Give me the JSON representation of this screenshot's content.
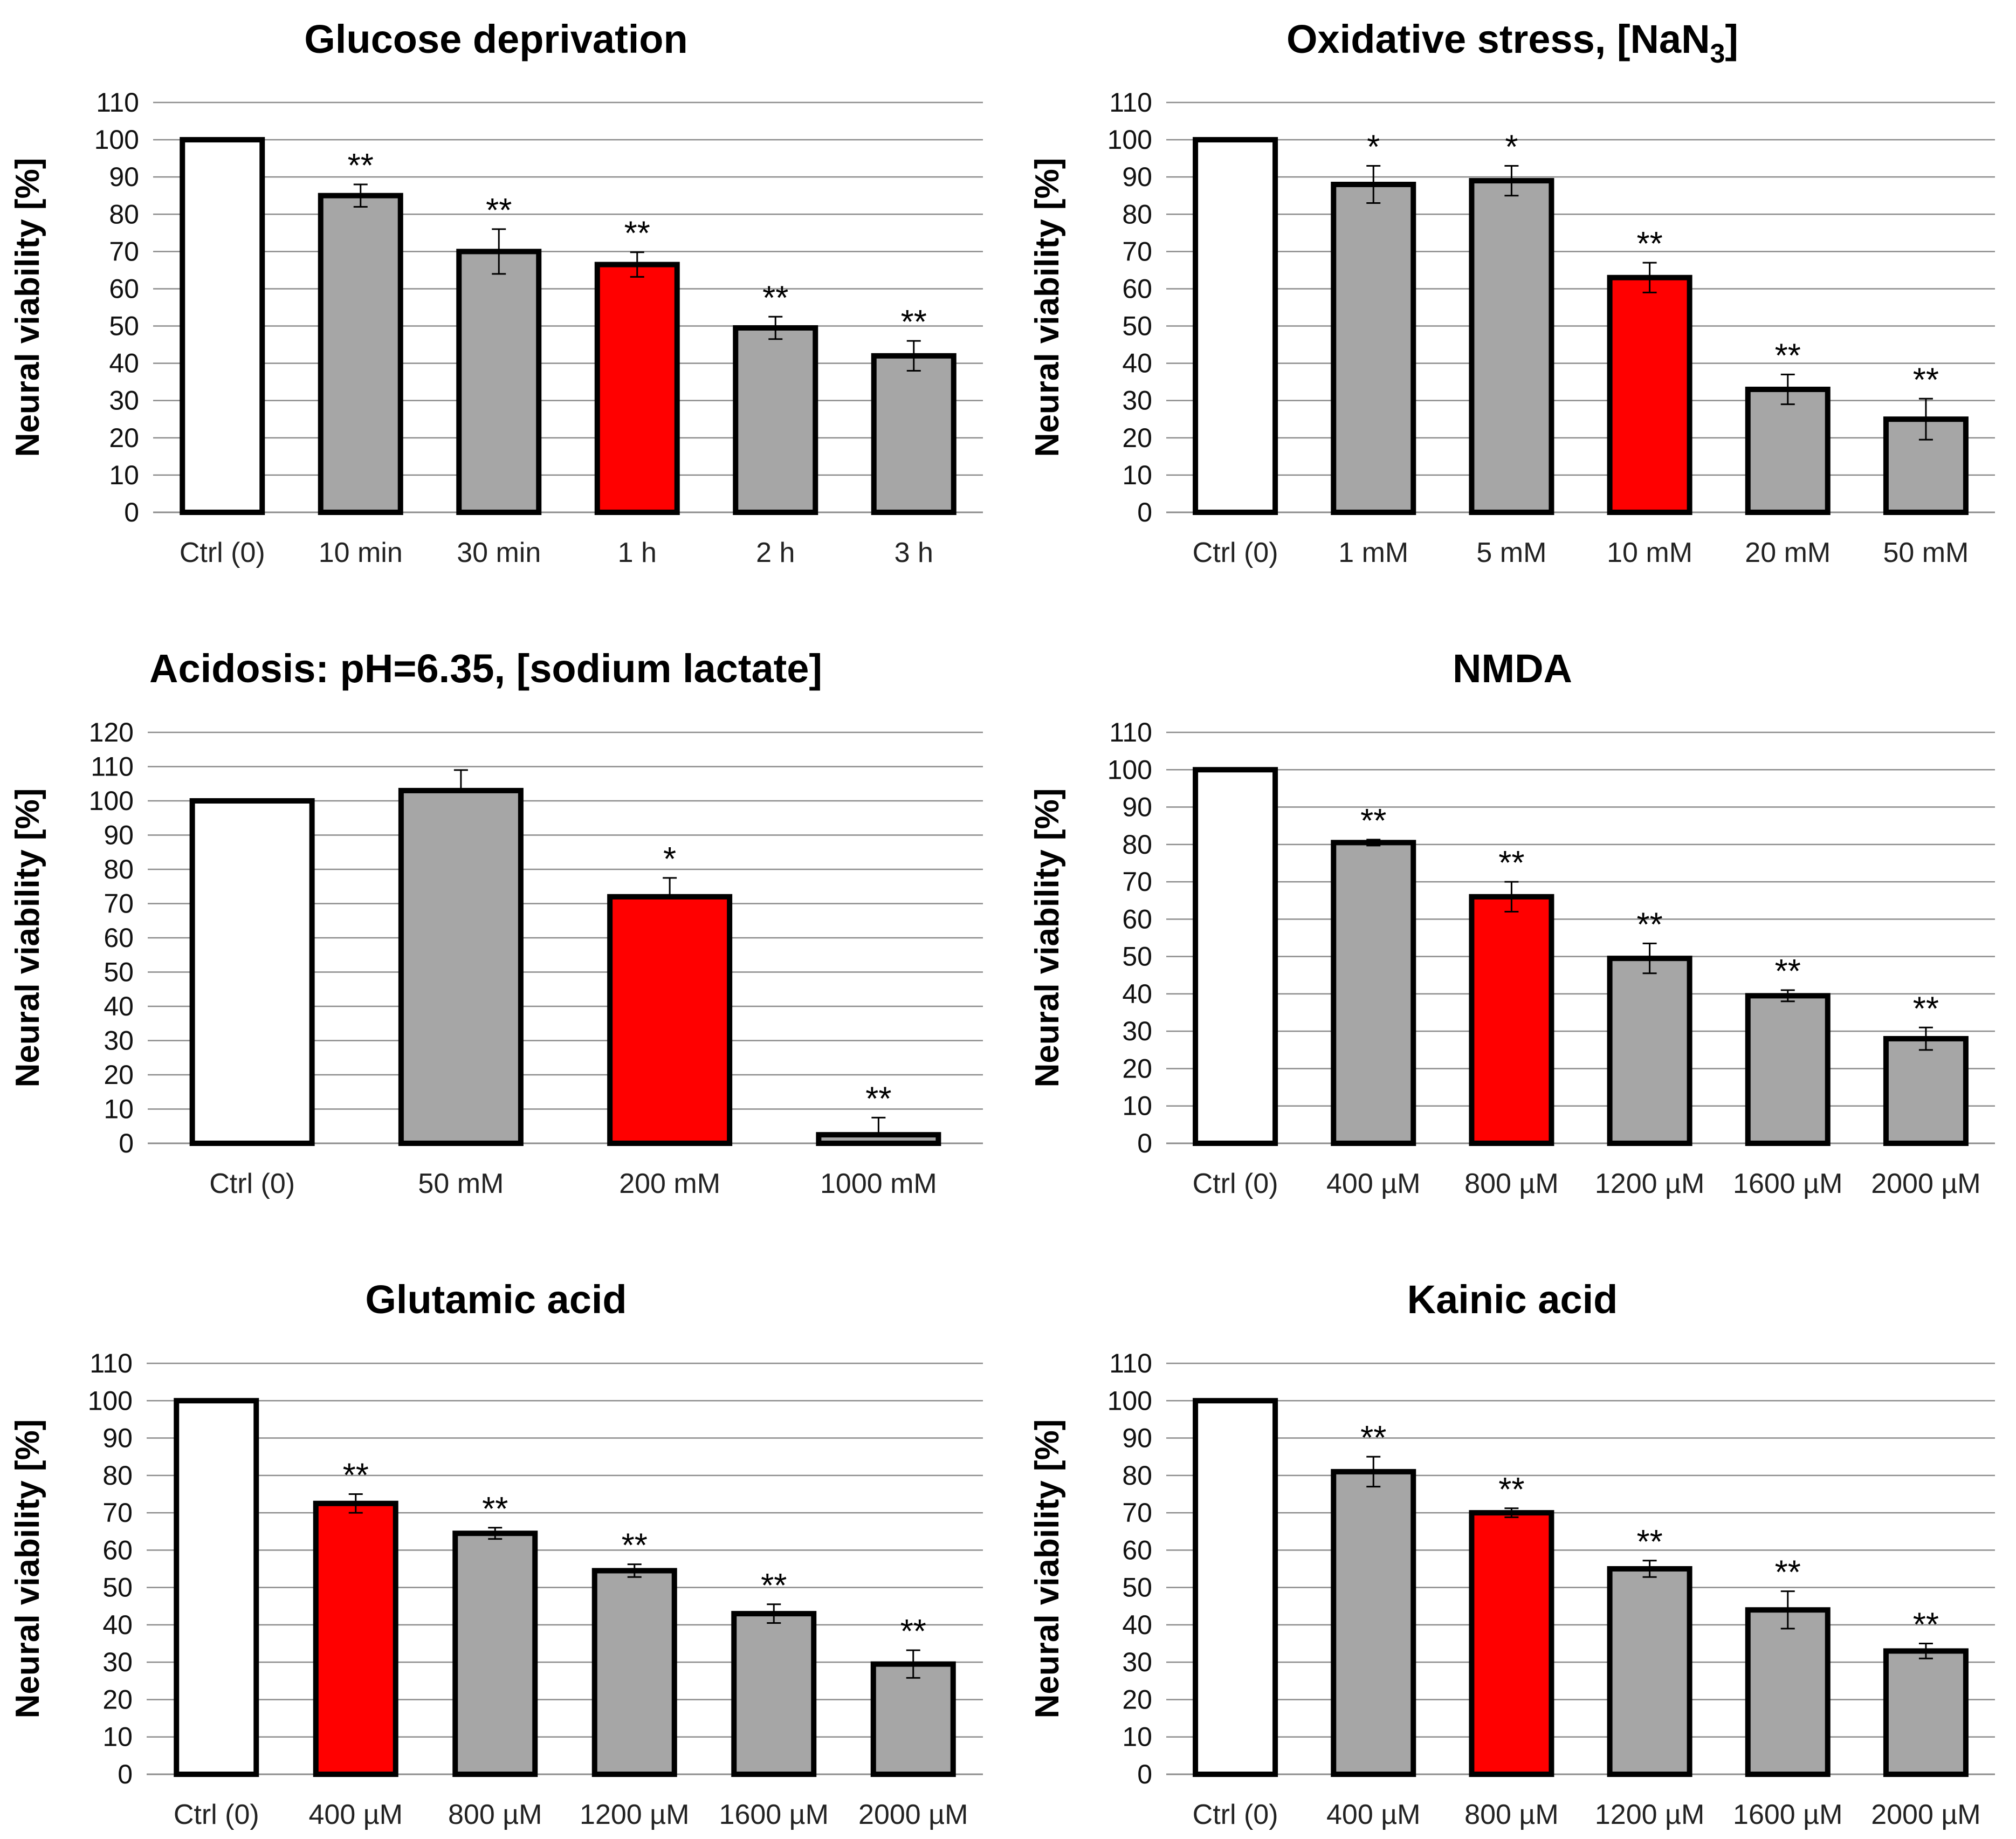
{
  "colors": {
    "control": "#ffffff",
    "treated": "#a6a6a6",
    "highlight": "#ff0000",
    "outline": "#000000"
  },
  "chart_data": [
    {
      "type": "bar",
      "title": "Glucose deprivation",
      "ylabel": "Neural viability [%]",
      "ylim": [
        0,
        110
      ],
      "yticks": [
        "0",
        "10",
        "20",
        "30",
        "40",
        "50",
        "60",
        "70",
        "80",
        "90",
        "100",
        "110"
      ],
      "categories": [
        "Ctrl (0)",
        "10 min",
        "30 min",
        "1 h",
        "2 h",
        "3 h"
      ],
      "values": [
        100,
        85,
        70,
        66.5,
        49.5,
        42
      ],
      "errors": [
        0,
        3,
        6,
        3.3,
        3,
        4
      ],
      "significance": [
        "",
        "**",
        "**",
        "**",
        "**",
        "**"
      ],
      "fill": [
        "control",
        "treated",
        "treated",
        "highlight",
        "treated",
        "treated"
      ]
    },
    {
      "type": "bar",
      "title": "Oxidative stress, [NaN3]",
      "title_parts": {
        "pre": "Oxidative stress, [NaN",
        "sub": "3",
        "post": "]"
      },
      "ylabel": "Neural viability [%]",
      "ylim": [
        0,
        110
      ],
      "yticks": [
        "0",
        "10",
        "20",
        "30",
        "40",
        "50",
        "60",
        "70",
        "80",
        "90",
        "100",
        "110"
      ],
      "categories": [
        "Ctrl (0)",
        "1 mM",
        "5 mM",
        "10 mM",
        "20 mM",
        "50 mM"
      ],
      "values": [
        100,
        88,
        89,
        63,
        33,
        25
      ],
      "errors": [
        0,
        5,
        4,
        4,
        4,
        5.5
      ],
      "significance": [
        "",
        "*",
        "*",
        "**",
        "**",
        "**"
      ],
      "fill": [
        "control",
        "treated",
        "treated",
        "highlight",
        "treated",
        "treated"
      ]
    },
    {
      "type": "bar",
      "title": "Acidosis: pH=6.35, [sodium lactate]",
      "ylabel": "Neural viability [%]",
      "ylim": [
        0,
        120
      ],
      "yticks": [
        "0",
        "10",
        "20",
        "30",
        "40",
        "50",
        "60",
        "70",
        "80",
        "90",
        "100",
        "110",
        "120"
      ],
      "categories": [
        "Ctrl (0)",
        "50 mM",
        "200 mM",
        "1000 mM"
      ],
      "values": [
        100,
        103,
        72,
        2.5
      ],
      "errors": [
        0,
        6,
        5.5,
        5
      ],
      "error_mode": "up",
      "significance": [
        "",
        "",
        "*",
        "**"
      ],
      "fill": [
        "control",
        "treated",
        "highlight",
        "treated"
      ]
    },
    {
      "type": "bar",
      "title": "NMDA",
      "ylabel": "Neural viability [%]",
      "ylim": [
        0,
        110
      ],
      "yticks": [
        "0",
        "10",
        "20",
        "30",
        "40",
        "50",
        "60",
        "70",
        "80",
        "90",
        "100",
        "110"
      ],
      "categories": [
        "Ctrl (0)",
        "400 µM",
        "800 µM",
        "1200 µM",
        "1600 µM",
        "2000 µM"
      ],
      "values": [
        100,
        80.5,
        66,
        49.5,
        39.5,
        28
      ],
      "errors": [
        0,
        0.8,
        4,
        4,
        1.5,
        3
      ],
      "significance": [
        "",
        "**",
        "**",
        "**",
        "**",
        "**"
      ],
      "fill": [
        "control",
        "treated",
        "highlight",
        "treated",
        "treated",
        "treated"
      ]
    },
    {
      "type": "bar",
      "title": "Glutamic acid",
      "ylabel": "Neural viability [%]",
      "ylim": [
        0,
        110
      ],
      "yticks": [
        "0",
        "10",
        "20",
        "30",
        "40",
        "50",
        "60",
        "70",
        "80",
        "90",
        "100",
        "110"
      ],
      "categories": [
        "Ctrl (0)",
        "400 µM",
        "800 µM",
        "1200 µM",
        "1600 µM",
        "2000 µM"
      ],
      "values": [
        100,
        72.5,
        64.5,
        54.5,
        43,
        29.5
      ],
      "errors": [
        0,
        2.5,
        1.5,
        1.7,
        2.5,
        3.7
      ],
      "significance": [
        "",
        "**",
        "**",
        "**",
        "**",
        "**"
      ],
      "fill": [
        "control",
        "highlight",
        "treated",
        "treated",
        "treated",
        "treated"
      ]
    },
    {
      "type": "bar",
      "title": "Kainic acid",
      "ylabel": "Neural viability [%]",
      "ylim": [
        0,
        110
      ],
      "yticks": [
        "0",
        "10",
        "20",
        "30",
        "40",
        "50",
        "60",
        "70",
        "80",
        "90",
        "100",
        "110"
      ],
      "categories": [
        "Ctrl (0)",
        "400 µM",
        "800 µM",
        "1200 µM",
        "1600 µM",
        "2000 µM"
      ],
      "values": [
        100,
        81,
        70,
        55,
        44,
        33
      ],
      "errors": [
        0,
        4,
        1.2,
        2.2,
        5,
        2
      ],
      "significance": [
        "",
        "**",
        "**",
        "**",
        "**",
        "**"
      ],
      "fill": [
        "control",
        "treated",
        "highlight",
        "treated",
        "treated",
        "treated"
      ]
    }
  ]
}
